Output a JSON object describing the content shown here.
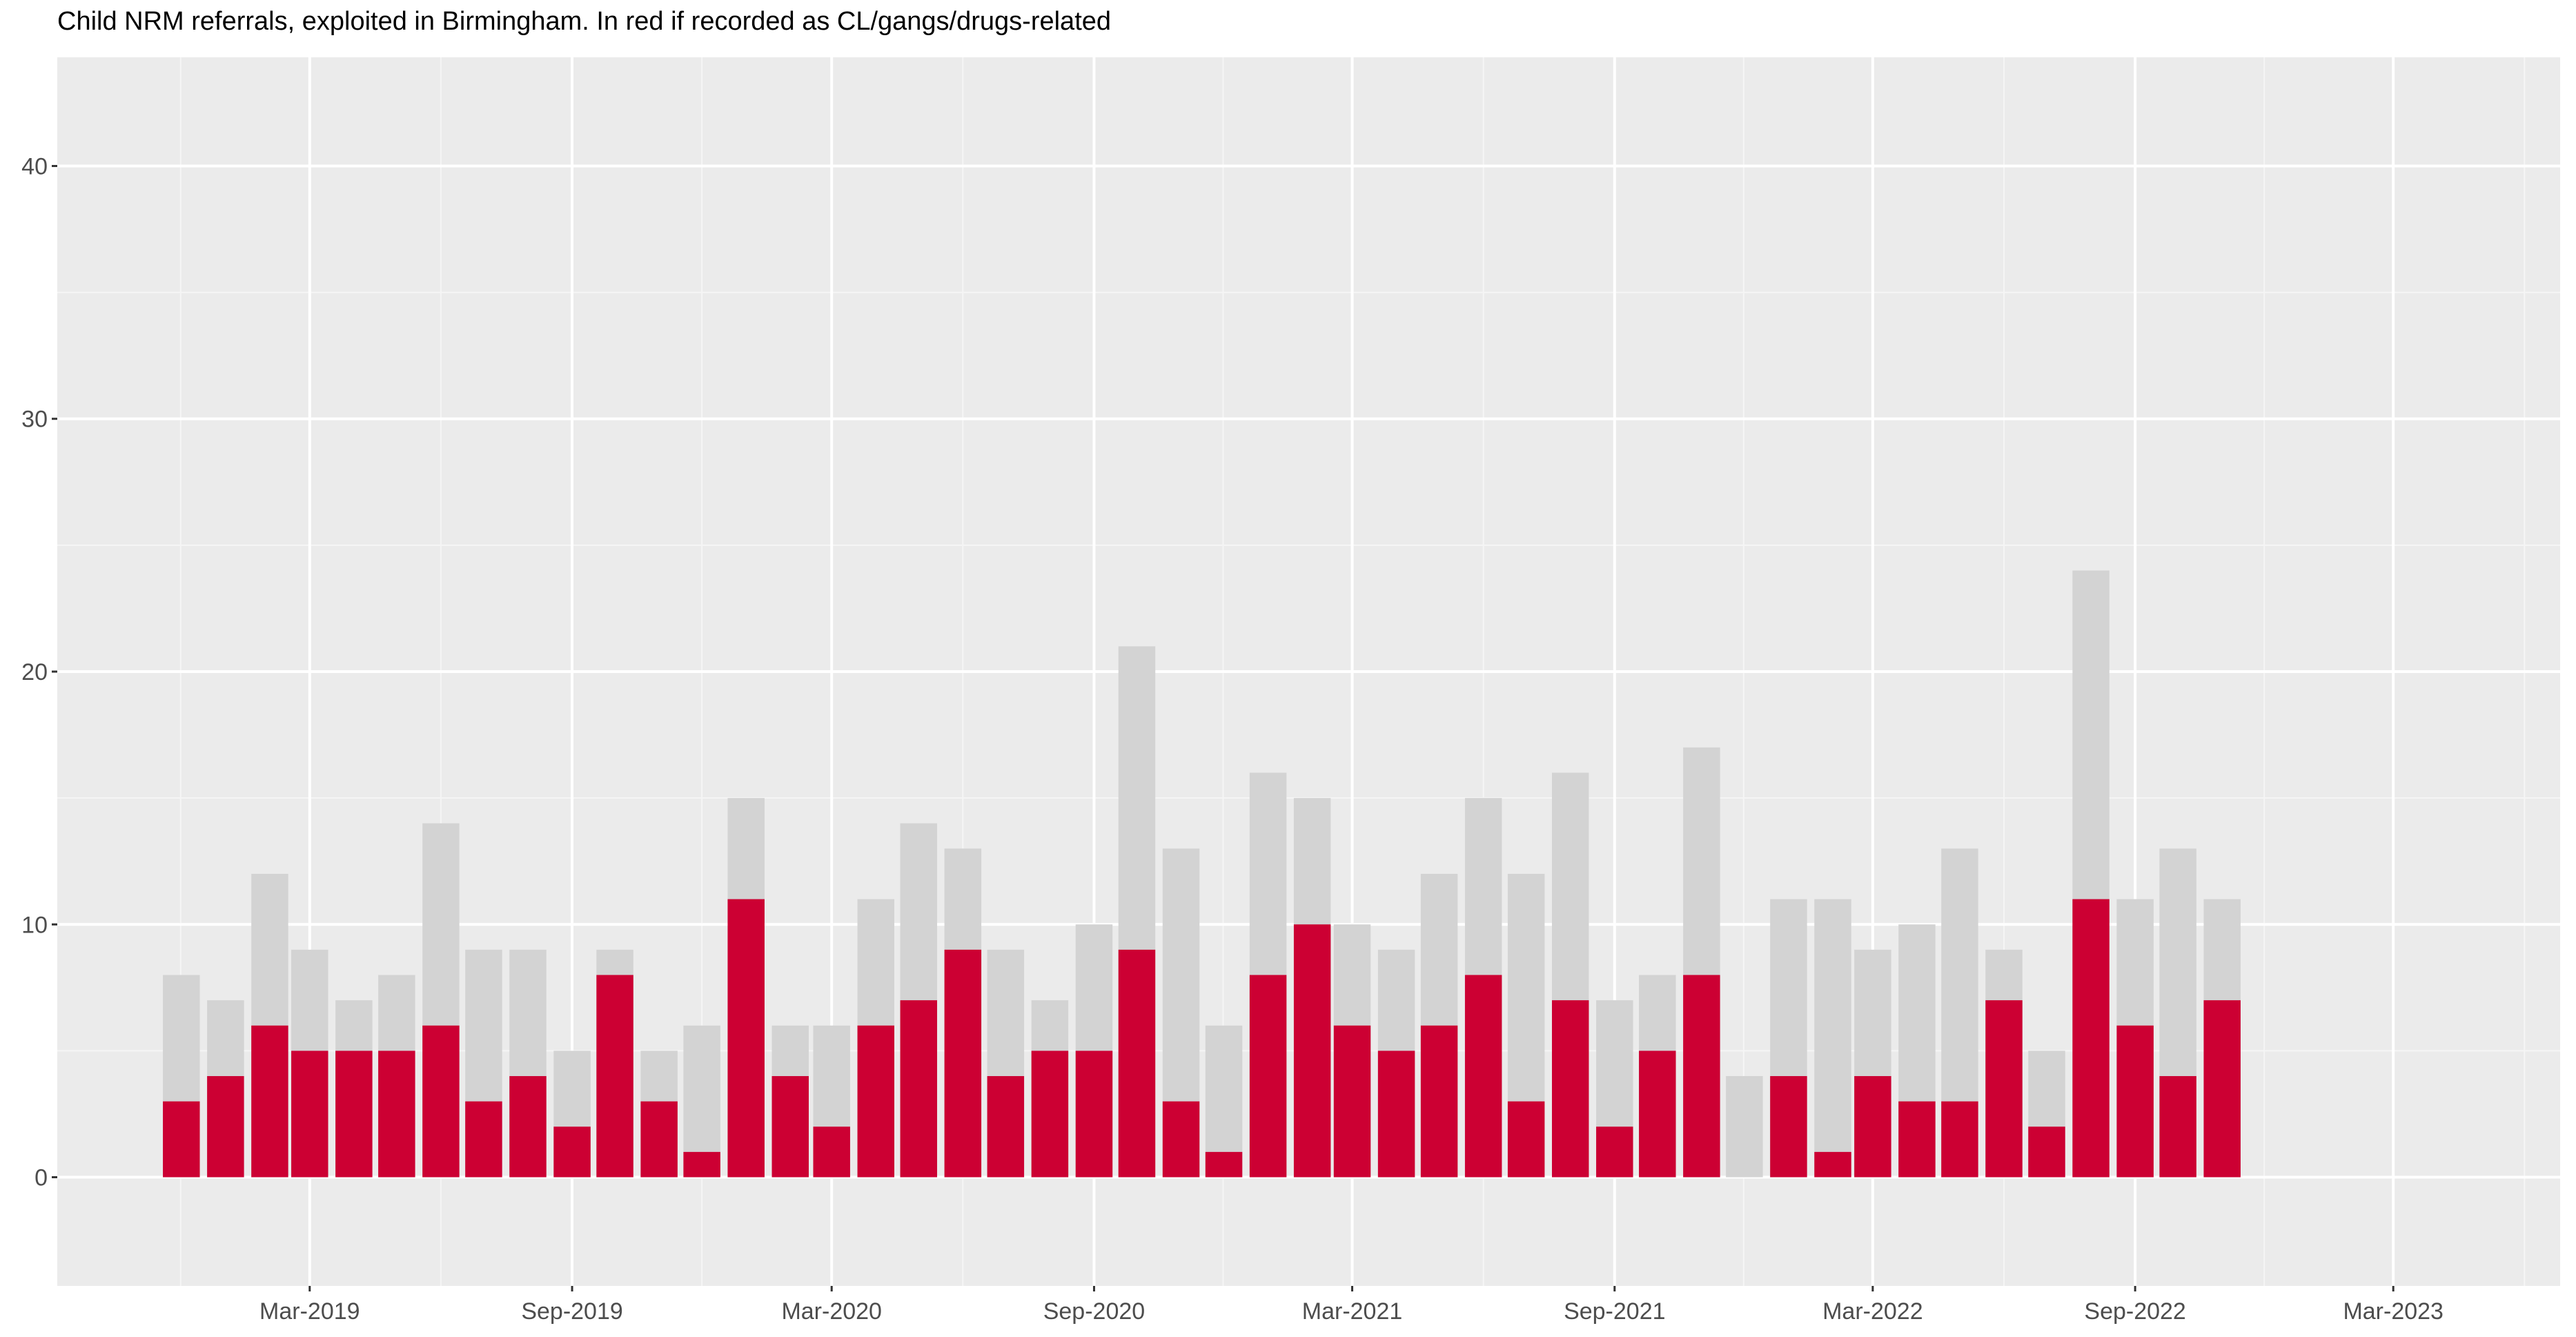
{
  "chart_data": {
    "type": "bar",
    "stacked": "overlay",
    "title": "Child NRM referrals, exploited in Birmingham. In red if recorded as CL/gangs/drugs-related",
    "xlabel": "",
    "ylabel": "",
    "x_start": "2018-12",
    "ylim": [
      -4.3,
      44.3
    ],
    "yticks": [
      0,
      10,
      20,
      30,
      40
    ],
    "ytick_labels": [
      "0",
      "10",
      "20",
      "30",
      "40"
    ],
    "xticks": [
      {
        "date": "2019-03",
        "label": "Mar-2019"
      },
      {
        "date": "2019-09",
        "label": "Sep-2019"
      },
      {
        "date": "2020-03",
        "label": "Mar-2020"
      },
      {
        "date": "2020-09",
        "label": "Sep-2020"
      },
      {
        "date": "2021-03",
        "label": "Mar-2021"
      },
      {
        "date": "2021-09",
        "label": "Sep-2021"
      },
      {
        "date": "2022-03",
        "label": "Mar-2022"
      },
      {
        "date": "2022-09",
        "label": "Sep-2022"
      },
      {
        "date": "2023-03",
        "label": "Mar-2023"
      }
    ],
    "x_range": [
      "2018-09-05",
      "2023-06-26"
    ],
    "grid": true,
    "legend": "none",
    "series": [
      {
        "key": "total",
        "color": "#d3d3d3",
        "values": [
          8,
          7,
          12,
          9,
          7,
          8,
          14,
          9,
          9,
          5,
          9,
          5,
          6,
          15,
          6,
          6,
          11,
          14,
          13,
          9,
          7,
          10,
          21,
          13,
          6,
          16,
          15,
          10,
          9,
          12,
          15,
          12,
          16,
          7,
          8,
          17,
          4,
          11,
          11,
          9,
          10,
          13,
          9,
          5,
          24,
          11,
          13,
          11
        ]
      },
      {
        "key": "cl_gangs_drugs",
        "color": "#cc0033",
        "values": [
          3,
          4,
          6,
          5,
          5,
          5,
          6,
          3,
          4,
          2,
          8,
          3,
          1,
          11,
          4,
          2,
          6,
          7,
          9,
          4,
          5,
          5,
          9,
          3,
          1,
          8,
          10,
          6,
          5,
          6,
          8,
          3,
          7,
          2,
          5,
          8,
          0,
          4,
          1,
          4,
          3,
          3,
          7,
          2,
          11,
          6,
          4,
          7
        ]
      }
    ],
    "colors": {
      "panel": "#ebebeb",
      "grid_major": "#ffffff",
      "grid_minor": "#f5f5f5",
      "tick_text": "#4d4d4d",
      "tick_mark": "#333333"
    }
  }
}
